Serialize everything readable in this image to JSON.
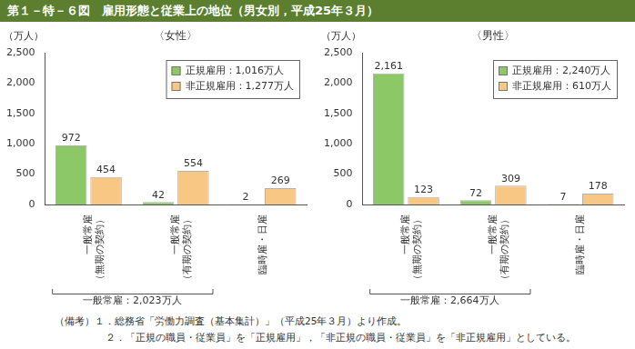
{
  "title": "第１－特－６図　雇用形態と従業上の地位（男女別，平成25年３月）",
  "notes": [
    "（備考）１．総務省「労働力調査（基本集計）」（平成25年３月）より作成。",
    "２．「正規の職員・従業員」を「正規雇用」，「非正規の職員・従業員」を「非正規雇用」としている。"
  ],
  "chart_data": [
    {
      "type": "bar",
      "title": "〈女性〉",
      "y_label": "（万人）",
      "categories": [
        "一般常雇（無期の契約）",
        "一般常雇（有期の契約）",
        "臨時雇・日雇"
      ],
      "series": [
        {
          "name": "正規雇用：1,016万人",
          "color": "#8cc866",
          "values": [
            972,
            42,
            2
          ]
        },
        {
          "name": "非正規雇用：1,277万人",
          "color": "#f9c784",
          "values": [
            454,
            554,
            269
          ]
        }
      ],
      "ylim": [
        0,
        2500
      ],
      "yticks": [
        0,
        500,
        {
          "value": 1000,
          "label": "1,000"
        },
        {
          "value": 1500,
          "label": "1,500"
        },
        {
          "value": 2000,
          "label": "2,000"
        },
        {
          "value": 2500,
          "label": "2,500"
        }
      ],
      "grid": false,
      "legend": "upper right",
      "data_labels": true,
      "annotation": {
        "text": "一般常雇：2,023万人",
        "categories": [
          "一般常雇（無期の契約）",
          "一般常雇（有期の契約）"
        ]
      }
    },
    {
      "type": "bar",
      "title": "〈男性〉",
      "y_label": "（万人）",
      "categories": [
        "一般常雇（無期の契約）",
        "一般常雇（有期の契約）",
        "臨時雇・日雇"
      ],
      "series": [
        {
          "name": "正規雇用：2,240万人",
          "color": "#8cc866",
          "values": [
            2161,
            72,
            7
          ],
          "value_labels": [
            "2,161",
            "72",
            "7"
          ]
        },
        {
          "name": "非正規雇用：610万人",
          "color": "#f9c784",
          "values": [
            123,
            309,
            178
          ]
        }
      ],
      "ylim": [
        0,
        2500
      ],
      "yticks": [
        0,
        500,
        {
          "value": 1000,
          "label": "1,000"
        },
        {
          "value": 1500,
          "label": "1,500"
        },
        {
          "value": 2000,
          "label": "2,000"
        },
        {
          "value": 2500,
          "label": "2,500"
        }
      ],
      "grid": false,
      "legend": "upper right",
      "data_labels": true,
      "annotation": {
        "text": "一般常雇：2,664万人",
        "categories": [
          "一般常雇（無期の契約）",
          "一般常雇（有期の契約）"
        ]
      }
    }
  ]
}
